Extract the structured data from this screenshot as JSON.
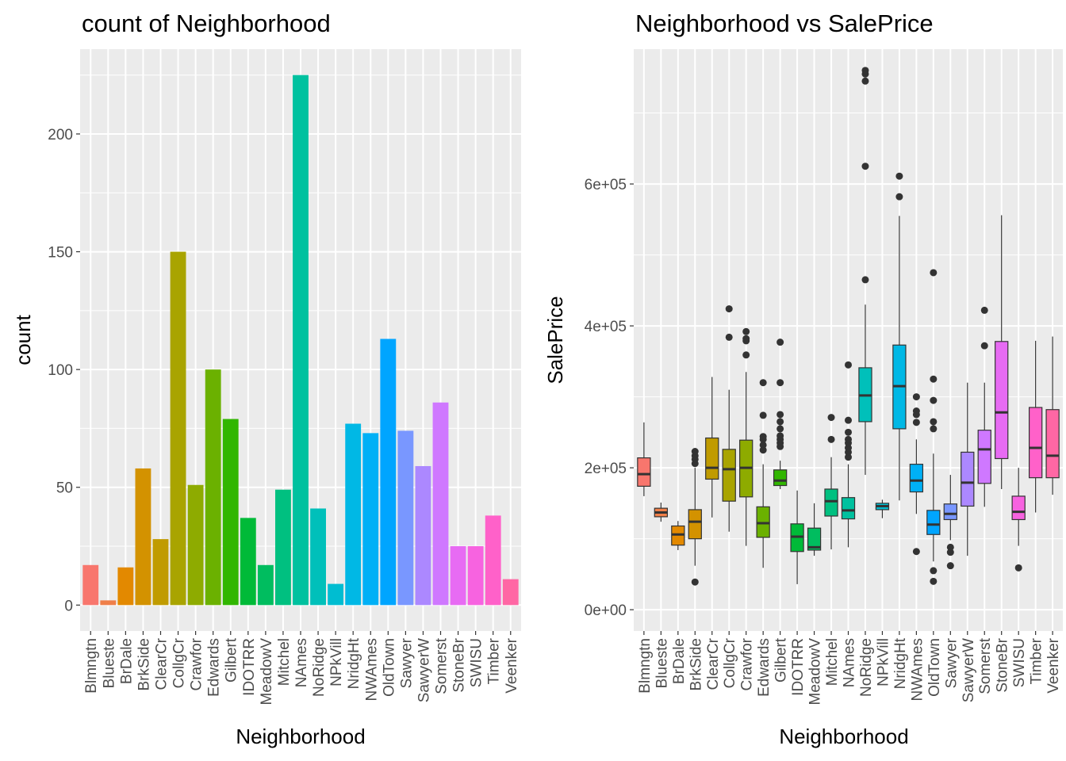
{
  "chart_data": [
    {
      "type": "bar",
      "title": "count of  Neighborhood",
      "xlabel": "Neighborhood",
      "ylabel": "count",
      "ylim": [
        -11,
        236
      ],
      "yticks": [
        0,
        50,
        100,
        150,
        200
      ],
      "grid": true,
      "categories": [
        "Blmngtn",
        "Blueste",
        "BrDale",
        "BrkSide",
        "ClearCr",
        "CollgCr",
        "Crawfor",
        "Edwards",
        "Gilbert",
        "IDOTRR",
        "MeadowV",
        "Mitchel",
        "NAmes",
        "NoRidge",
        "NPkVill",
        "NridgHt",
        "NWAmes",
        "OldTown",
        "Sawyer",
        "SawyerW",
        "Somerst",
        "StoneBr",
        "SWISU",
        "Timber",
        "Veenker"
      ],
      "values": [
        17,
        2,
        16,
        58,
        28,
        150,
        51,
        100,
        79,
        37,
        17,
        49,
        225,
        41,
        9,
        77,
        73,
        113,
        74,
        59,
        86,
        25,
        25,
        38,
        11
      ],
      "colors": [
        "#F8766D",
        "#EF7F49",
        "#E38900",
        "#D39200",
        "#C09B00",
        "#A9A400",
        "#8EAB00",
        "#6BB100",
        "#31B600",
        "#00BA38",
        "#00BD5F",
        "#00C080",
        "#00C19F",
        "#00C0BA",
        "#00BDD1",
        "#00B8E5",
        "#00B0F6",
        "#00A5FF",
        "#7997FF",
        "#AC88FF",
        "#CF78FF",
        "#E76BF3",
        "#F763E0",
        "#FF61C9",
        "#FF67A4"
      ]
    },
    {
      "type": "boxplot",
      "title": "Neighborhood  vs SalePrice",
      "xlabel": "Neighborhood",
      "ylabel": "SalePrice",
      "ylim": [
        -0.3,
        7.9
      ],
      "y_unit": "1e+05",
      "yticks": [
        0,
        2,
        4,
        6
      ],
      "ytick_labels": [
        "0e+00",
        "2e+05",
        "4e+05",
        "6e+05"
      ],
      "grid": true,
      "categories": [
        "Blmngtn",
        "Blueste",
        "BrDale",
        "BrkSide",
        "ClearCr",
        "CollgCr",
        "Crawfor",
        "Edwards",
        "Gilbert",
        "IDOTRR",
        "MeadowV",
        "Mitchel",
        "NAmes",
        "NoRidge",
        "NPkVill",
        "NridgHt",
        "NWAmes",
        "OldTown",
        "Sawyer",
        "SawyerW",
        "Somerst",
        "StoneBr",
        "SWISU",
        "Timber",
        "Veenker"
      ],
      "colors": [
        "#F8766D",
        "#EF7F49",
        "#E38900",
        "#D39200",
        "#C09B00",
        "#A9A400",
        "#8EAB00",
        "#6BB100",
        "#31B600",
        "#00BA38",
        "#00BD5F",
        "#00C080",
        "#00C19F",
        "#00C0BA",
        "#00BDD1",
        "#00B8E5",
        "#00B0F6",
        "#00A5FF",
        "#7997FF",
        "#AC88FF",
        "#CF78FF",
        "#E76BF3",
        "#F763E0",
        "#FF61C9",
        "#FF67A4"
      ],
      "boxes": [
        {
          "min": 1.6,
          "q1": 1.74,
          "median": 1.91,
          "q3": 2.14,
          "max": 2.64,
          "outliers": []
        },
        {
          "min": 1.24,
          "q1": 1.31,
          "median": 1.37,
          "q3": 1.43,
          "max": 1.51,
          "outliers": []
        },
        {
          "min": 0.84,
          "q1": 0.91,
          "median": 1.06,
          "q3": 1.18,
          "max": 1.25,
          "outliers": []
        },
        {
          "min": 0.62,
          "q1": 1.0,
          "median": 1.24,
          "q3": 1.41,
          "max": 2.0,
          "outliers": [
            2.06,
            2.12,
            2.17,
            2.23,
            0.39
          ]
        },
        {
          "min": 1.3,
          "q1": 1.84,
          "median": 2.0,
          "q3": 2.42,
          "max": 3.28,
          "outliers": []
        },
        {
          "min": 1.1,
          "q1": 1.53,
          "median": 1.98,
          "q3": 2.26,
          "max": 3.1,
          "outliers": [
            3.84,
            4.24
          ]
        },
        {
          "min": 0.9,
          "q1": 1.59,
          "median": 2.0,
          "q3": 2.39,
          "max": 3.35,
          "outliers": [
            3.59,
            3.79,
            3.82,
            3.92
          ]
        },
        {
          "min": 0.59,
          "q1": 1.02,
          "median": 1.22,
          "q3": 1.45,
          "max": 2.05,
          "outliers": [
            2.25,
            2.32,
            2.4,
            2.44,
            2.74,
            3.2
          ]
        },
        {
          "min": 1.7,
          "q1": 1.75,
          "median": 1.82,
          "q3": 1.97,
          "max": 2.1,
          "outliers": [
            2.3,
            2.35,
            2.4,
            2.45,
            2.55,
            2.65,
            2.75,
            3.2,
            3.77
          ]
        },
        {
          "min": 0.36,
          "q1": 0.82,
          "median": 1.03,
          "q3": 1.21,
          "max": 1.68,
          "outliers": []
        },
        {
          "min": 0.76,
          "q1": 0.84,
          "median": 0.88,
          "q3": 1.15,
          "max": 1.5,
          "outliers": []
        },
        {
          "min": 0.85,
          "q1": 1.32,
          "median": 1.53,
          "q3": 1.7,
          "max": 2.15,
          "outliers": [
            2.4,
            2.71
          ]
        },
        {
          "min": 0.88,
          "q1": 1.28,
          "median": 1.4,
          "q3": 1.58,
          "max": 2.05,
          "outliers": [
            2.15,
            2.22,
            2.28,
            2.35,
            2.4,
            2.5,
            2.67,
            3.45
          ]
        },
        {
          "min": 1.9,
          "q1": 2.65,
          "median": 3.02,
          "q3": 3.41,
          "max": 4.3,
          "outliers": [
            4.65,
            6.25,
            7.45,
            7.55,
            7.6
          ]
        },
        {
          "min": 1.29,
          "q1": 1.41,
          "median": 1.46,
          "q3": 1.5,
          "max": 1.55,
          "outliers": []
        },
        {
          "min": 1.54,
          "q1": 2.55,
          "median": 3.15,
          "q3": 3.73,
          "max": 5.55,
          "outliers": [
            5.82,
            6.11
          ]
        },
        {
          "min": 1.35,
          "q1": 1.66,
          "median": 1.82,
          "q3": 2.05,
          "max": 2.4,
          "outliers": [
            2.64,
            2.75,
            2.8,
            3.0,
            0.82
          ]
        },
        {
          "min": 0.68,
          "q1": 1.06,
          "median": 1.2,
          "q3": 1.4,
          "max": 2.2,
          "outliers": [
            2.55,
            2.65,
            2.95,
            3.25,
            4.75,
            0.55,
            0.4
          ]
        },
        {
          "min": 0.98,
          "q1": 1.27,
          "median": 1.35,
          "q3": 1.49,
          "max": 1.9,
          "outliers": [
            0.88,
            0.81,
            0.62
          ]
        },
        {
          "min": 0.76,
          "q1": 1.46,
          "median": 1.79,
          "q3": 2.22,
          "max": 3.2,
          "outliers": []
        },
        {
          "min": 1.45,
          "q1": 1.78,
          "median": 2.26,
          "q3": 2.53,
          "max": 3.2,
          "outliers": [
            3.72,
            4.22
          ]
        },
        {
          "min": 1.7,
          "q1": 2.13,
          "median": 2.78,
          "q3": 3.78,
          "max": 5.56,
          "outliers": []
        },
        {
          "min": 0.9,
          "q1": 1.27,
          "median": 1.38,
          "q3": 1.6,
          "max": 2.0,
          "outliers": [
            0.59
          ]
        },
        {
          "min": 1.37,
          "q1": 1.86,
          "median": 2.28,
          "q3": 2.85,
          "max": 3.79,
          "outliers": []
        },
        {
          "min": 1.62,
          "q1": 1.86,
          "median": 2.17,
          "q3": 2.82,
          "max": 3.85,
          "outliers": []
        }
      ]
    }
  ]
}
